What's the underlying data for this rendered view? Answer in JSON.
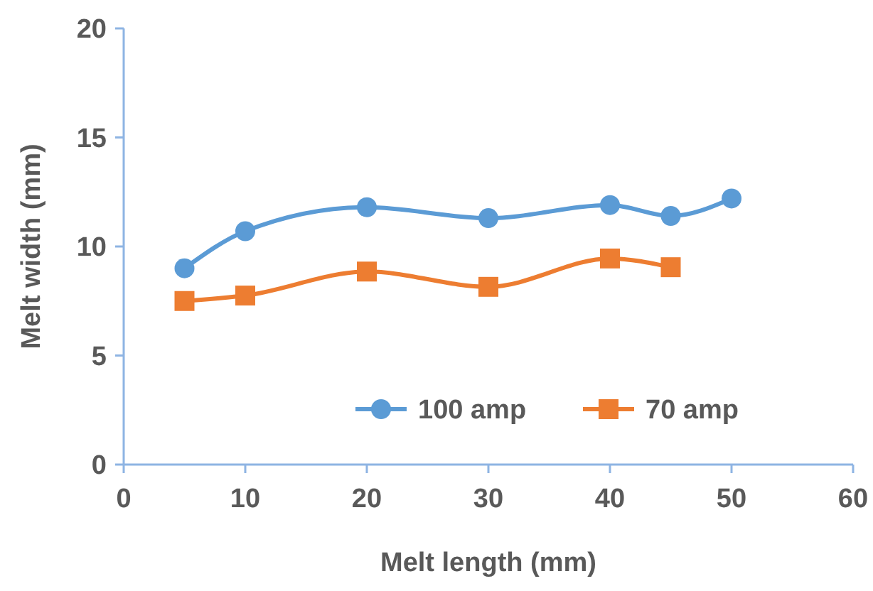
{
  "chart_data": {
    "type": "line",
    "xlabel": "Melt length (mm)",
    "ylabel": "Melt width (mm)",
    "xlim": [
      0,
      60
    ],
    "xticks": [
      0,
      10,
      20,
      30,
      40,
      50,
      60
    ],
    "ylim": [
      0,
      20
    ],
    "yticks": [
      0,
      5,
      10,
      15,
      20
    ],
    "grid": false,
    "legend": "bottom right",
    "line_style": "solid",
    "series": [
      {
        "name": "100 amp",
        "color": "#5b9bd5",
        "marker": "circle",
        "x": [
          5,
          10,
          20,
          30,
          40,
          45,
          50
        ],
        "values": [
          9.0,
          10.7,
          11.8,
          11.3,
          11.9,
          11.4,
          12.2
        ]
      },
      {
        "name": "70 amp",
        "color": "#ed7d31",
        "marker": "square",
        "x": [
          5,
          10,
          20,
          30,
          40,
          45
        ],
        "values": [
          7.5,
          7.75,
          8.85,
          8.15,
          9.45,
          9.05
        ]
      }
    ]
  }
}
